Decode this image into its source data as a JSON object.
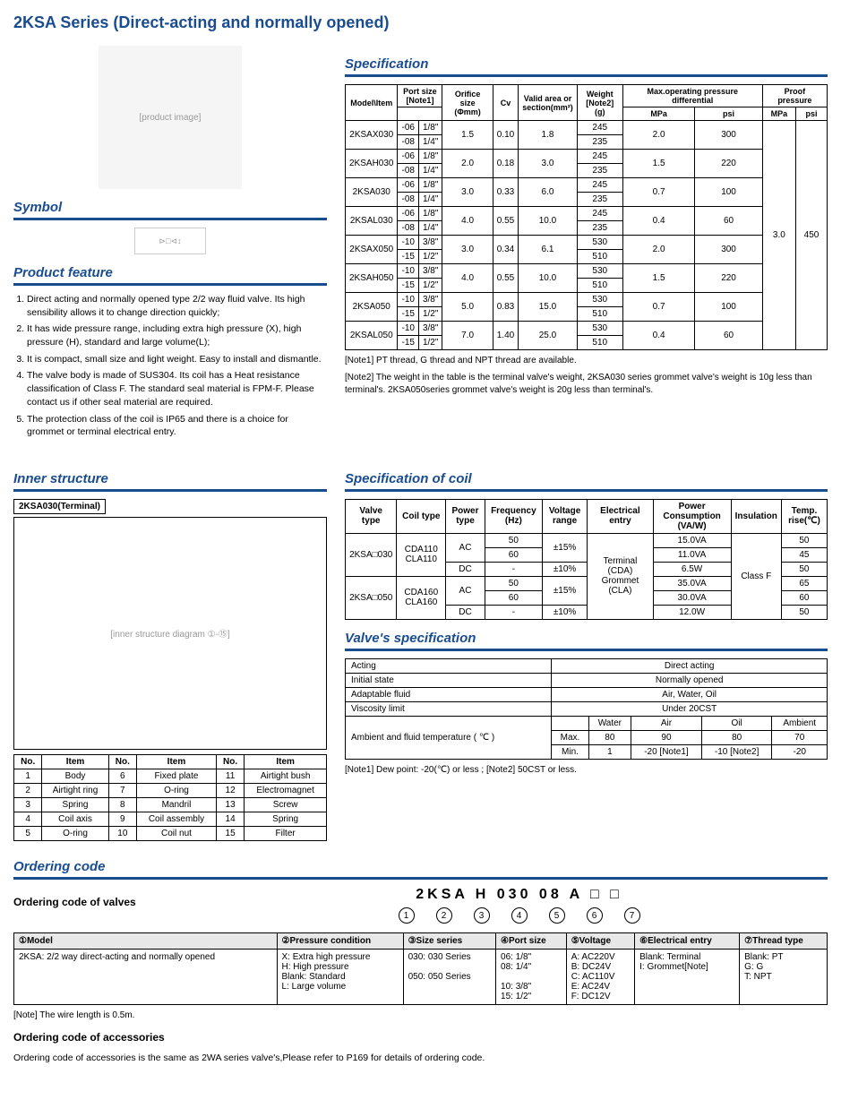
{
  "title": "2KSA Series (Direct-acting and normally opened)",
  "sections": {
    "symbol": "Symbol",
    "feature": "Product feature",
    "spec": "Specification",
    "inner": "Inner structure",
    "coil": "Specification of coil",
    "valvespec": "Valve's specification",
    "order": "Ordering code"
  },
  "features": [
    "Direct acting and normally opened type 2/2 way fluid valve. Its high sensibility allows it to change direction quickly;",
    "It has wide pressure range, including extra high pressure (X), high pressure (H), standard and large volume(L);",
    "It is compact, small size and light weight. Easy to install and dismantle.",
    "The valve body is made of SUS304. Its coil has a Heat resistance classification of Class F. The standard seal material is FPM-F. Please contact us if other seal material are required.",
    "The protection class of the coil is IP65 and there is a choice for grommet or terminal electrical entry."
  ],
  "spec_headers": [
    "Model\\Item",
    "Port size [Note1]",
    "Orifice size (Φmm)",
    "Cv",
    "Valid area or section(mm²)",
    "Weight [Note2](g)",
    "Max.operating pressure differential",
    "Proof pressure"
  ],
  "spec_sub": [
    "",
    "",
    "",
    "",
    "",
    "",
    "MPa",
    "psi",
    "MPa",
    "psi"
  ],
  "spec_rows": [
    {
      "model": "2KSAX030",
      "ports": [
        [
          "-06",
          "1/8\"",
          "245"
        ],
        [
          "-08",
          "1/4\"",
          "235"
        ]
      ],
      "orifice": "1.5",
      "cv": "0.10",
      "area": "1.8",
      "mpa": "2.0",
      "psi": "300"
    },
    {
      "model": "2KSAH030",
      "ports": [
        [
          "-06",
          "1/8\"",
          "245"
        ],
        [
          "-08",
          "1/4\"",
          "235"
        ]
      ],
      "orifice": "2.0",
      "cv": "0.18",
      "area": "3.0",
      "mpa": "1.5",
      "psi": "220"
    },
    {
      "model": "2KSA030",
      "ports": [
        [
          "-06",
          "1/8\"",
          "245"
        ],
        [
          "-08",
          "1/4\"",
          "235"
        ]
      ],
      "orifice": "3.0",
      "cv": "0.33",
      "area": "6.0",
      "mpa": "0.7",
      "psi": "100"
    },
    {
      "model": "2KSAL030",
      "ports": [
        [
          "-06",
          "1/8\"",
          "245"
        ],
        [
          "-08",
          "1/4\"",
          "235"
        ]
      ],
      "orifice": "4.0",
      "cv": "0.55",
      "area": "10.0",
      "mpa": "0.4",
      "psi": "60"
    },
    {
      "model": "2KSAX050",
      "ports": [
        [
          "-10",
          "3/8\"",
          "530"
        ],
        [
          "-15",
          "1/2\"",
          "510"
        ]
      ],
      "orifice": "3.0",
      "cv": "0.34",
      "area": "6.1",
      "mpa": "2.0",
      "psi": "300"
    },
    {
      "model": "2KSAH050",
      "ports": [
        [
          "-10",
          "3/8\"",
          "530"
        ],
        [
          "-15",
          "1/2\"",
          "510"
        ]
      ],
      "orifice": "4.0",
      "cv": "0.55",
      "area": "10.0",
      "mpa": "1.5",
      "psi": "220"
    },
    {
      "model": "2KSA050",
      "ports": [
        [
          "-10",
          "3/8\"",
          "530"
        ],
        [
          "-15",
          "1/2\"",
          "510"
        ]
      ],
      "orifice": "5.0",
      "cv": "0.83",
      "area": "15.0",
      "mpa": "0.7",
      "psi": "100"
    },
    {
      "model": "2KSAL050",
      "ports": [
        [
          "-10",
          "3/8\"",
          "530"
        ],
        [
          "-15",
          "1/2\"",
          "510"
        ]
      ],
      "orifice": "7.0",
      "cv": "1.40",
      "area": "25.0",
      "mpa": "0.4",
      "psi": "60"
    }
  ],
  "proof": {
    "mpa": "3.0",
    "psi": "450"
  },
  "spec_note1": "[Note1] PT thread, G thread and NPT thread are available.",
  "spec_note2": "[Note2] The weight in the table is the terminal valve's weight, 2KSA030 series grommet valve's weight is 10g less than terminal's. 2KSA050series grommet valve's weight is 20g less than terminal's.",
  "struct_label": "2KSA030(Terminal)",
  "struct_headers": [
    "No.",
    "Item",
    "No.",
    "Item",
    "No.",
    "Item"
  ],
  "struct_rows": [
    [
      "1",
      "Body",
      "6",
      "Fixed plate",
      "11",
      "Airtight bush"
    ],
    [
      "2",
      "Airtight ring",
      "7",
      "O-ring",
      "12",
      "Electromagnet"
    ],
    [
      "3",
      "Spring",
      "8",
      "Mandril",
      "13",
      "Screw"
    ],
    [
      "4",
      "Coil axis",
      "9",
      "Coil assembly",
      "14",
      "Spring"
    ],
    [
      "5",
      "O-ring",
      "10",
      "Coil nut",
      "15",
      "Filter"
    ]
  ],
  "coil_headers": [
    "Valve type",
    "Coil type",
    "Power type",
    "Frequency (Hz)",
    "Voltage range",
    "Electrical entry",
    "Power Consumption (VA/W)",
    "Insulation",
    "Temp. rise(℃)"
  ],
  "coil_rows": [
    {
      "valve": "2KSA□030",
      "coil": "CDA110 CLA110",
      "rows": [
        [
          "AC",
          "50",
          "±15%",
          "15.0VA",
          "50"
        ],
        [
          "",
          "60",
          "",
          "11.0VA",
          "45"
        ],
        [
          "DC",
          "-",
          "±10%",
          "6.5W",
          "50"
        ]
      ]
    },
    {
      "valve": "2KSA□050",
      "coil": "CDA160 CLA160",
      "rows": [
        [
          "AC",
          "50",
          "±15%",
          "35.0VA",
          "65"
        ],
        [
          "",
          "60",
          "",
          "30.0VA",
          "60"
        ],
        [
          "DC",
          "-",
          "±10%",
          "12.0W",
          "50"
        ]
      ]
    }
  ],
  "coil_entry": "Terminal (CDA) Grommet (CLA)",
  "coil_insul": "Class F",
  "valvespec_rows": [
    [
      "Acting",
      "Direct acting"
    ],
    [
      "Initial state",
      "Normally opened"
    ],
    [
      "Adaptable fluid",
      "Air, Water, Oil"
    ],
    [
      "Viscosity limit",
      "Under 20CST"
    ]
  ],
  "temp_header": "Ambient and fluid temperature ( ℃ )",
  "temp_cols": [
    "",
    "Water",
    "Air",
    "Oil",
    "Ambient"
  ],
  "temp_rows": [
    [
      "Max.",
      "80",
      "90",
      "80",
      "70"
    ],
    [
      "Min.",
      "1",
      "-20 [Note1]",
      "-10 [Note2]",
      "-20"
    ]
  ],
  "valve_note": "[Note1] Dew point: -20(℃) or less ;      [Note2] 50CST or less.",
  "order_valve_label": "Ordering code of valves",
  "order_code": "2KSA  H  030 08  A  □  □",
  "order_nums": [
    "1",
    "2",
    "3",
    "4",
    "5",
    "6",
    "7"
  ],
  "order_headers": [
    "①Model",
    "②Pressure condition",
    "③Size series",
    "④Port size",
    "⑤Voltage",
    "⑥Electrical entry",
    "⑦Thread type"
  ],
  "order_cells": [
    "2KSA: 2/2 way direct-acting and normally opened",
    "X: Extra high pressure\nH: High pressure\nBlank: Standard\nL: Large volume",
    "030: 030 Series\n\n050: 050 Series",
    "06: 1/8\"\n08: 1/4\"\n\n10: 3/8\"\n15: 1/2\"",
    "A: AC220V\nB: DC24V\nC: AC110V\nE: AC24V\nF: DC12V",
    "Blank: Terminal\nI: Grommet[Note]",
    "Blank: PT\nG: G\nT: NPT"
  ],
  "order_note": "[Note] The wire length is 0.5m.",
  "order_acc_label": "Ordering code of accessories",
  "order_acc_text": "Ordering code of accessories is the same as 2WA series valve's,Please refer to P169  for details  of ordering code."
}
